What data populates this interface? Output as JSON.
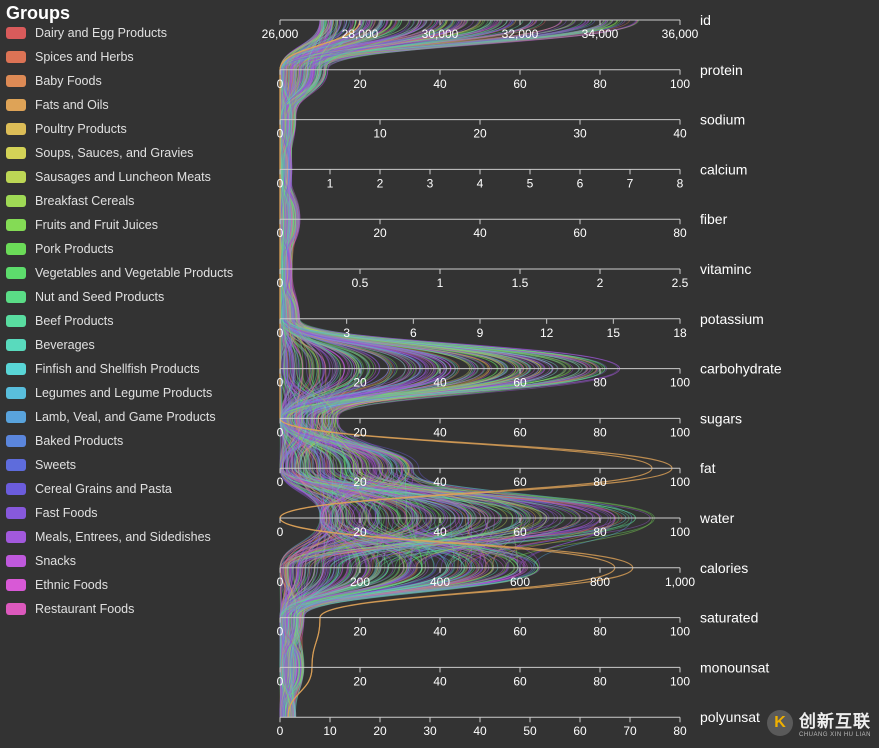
{
  "chart_data": {
    "type": "parallel_coordinates",
    "legend_title": "Groups",
    "legend_position": "left",
    "groups": [
      {
        "name": "Dairy and Egg Products",
        "color": "#d95b5b"
      },
      {
        "name": "Spices and Herbs",
        "color": "#dc7355"
      },
      {
        "name": "Baby Foods",
        "color": "#dd8a55"
      },
      {
        "name": "Fats and Oils",
        "color": "#dea357"
      },
      {
        "name": "Poultry Products",
        "color": "#dcbd57"
      },
      {
        "name": "Soups, Sauces, and Gravies",
        "color": "#d4d357"
      },
      {
        "name": "Sausages and Luncheon Meats",
        "color": "#bcd655"
      },
      {
        "name": "Breakfast Cereals",
        "color": "#9fd955"
      },
      {
        "name": "Fruits and Fruit Juices",
        "color": "#84db55"
      },
      {
        "name": "Pork Products",
        "color": "#6bdb58"
      },
      {
        "name": "Vegetables and Vegetable Products",
        "color": "#5ddc6c"
      },
      {
        "name": "Nut and Seed Products",
        "color": "#5adc86"
      },
      {
        "name": "Beef Products",
        "color": "#59dca0"
      },
      {
        "name": "Beverages",
        "color": "#59dabd"
      },
      {
        "name": "Finfish and Shellfish Products",
        "color": "#59d5d6"
      },
      {
        "name": "Legumes and Legume Products",
        "color": "#59bedc"
      },
      {
        "name": "Lamb, Veal, and Game Products",
        "color": "#59a3dc"
      },
      {
        "name": "Baked Products",
        "color": "#5b86dc"
      },
      {
        "name": "Sweets",
        "color": "#5e6cdc"
      },
      {
        "name": "Cereal Grains and Pasta",
        "color": "#6b5cdc"
      },
      {
        "name": "Fast Foods",
        "color": "#8759dc"
      },
      {
        "name": "Meals, Entrees, and Sidedishes",
        "color": "#a259dc"
      },
      {
        "name": "Snacks",
        "color": "#bf59dc"
      },
      {
        "name": "Ethnic Foods",
        "color": "#d859d6"
      },
      {
        "name": "Restaurant Foods",
        "color": "#dc59bd"
      }
    ],
    "axes": [
      {
        "name": "id",
        "range": [
          26000,
          36000
        ],
        "ticks": [
          "26,000",
          "28,000",
          "30,000",
          "32,000",
          "34,000",
          "36,000"
        ]
      },
      {
        "name": "protein",
        "range": [
          0,
          100
        ],
        "ticks": [
          "0",
          "20",
          "40",
          "60",
          "80",
          "100"
        ]
      },
      {
        "name": "sodium",
        "range": [
          0,
          40
        ],
        "ticks": [
          "0",
          "10",
          "20",
          "30",
          "40"
        ]
      },
      {
        "name": "calcium",
        "range": [
          0,
          8
        ],
        "ticks": [
          "0",
          "1",
          "2",
          "3",
          "4",
          "5",
          "6",
          "7",
          "8"
        ]
      },
      {
        "name": "fiber",
        "range": [
          0,
          80
        ],
        "ticks": [
          "0",
          "20",
          "40",
          "60",
          "80"
        ]
      },
      {
        "name": "vitaminc",
        "range": [
          0,
          2.5
        ],
        "ticks": [
          "0",
          "0.5",
          "1",
          "1.5",
          "2",
          "2.5"
        ]
      },
      {
        "name": "potassium",
        "range": [
          0,
          18
        ],
        "ticks": [
          "0",
          "3",
          "6",
          "9",
          "12",
          "15",
          "18"
        ]
      },
      {
        "name": "carbohydrate",
        "range": [
          0,
          100
        ],
        "ticks": [
          "0",
          "20",
          "40",
          "60",
          "80",
          "100"
        ]
      },
      {
        "name": "sugars",
        "range": [
          0,
          100
        ],
        "ticks": [
          "0",
          "20",
          "40",
          "60",
          "80",
          "100"
        ]
      },
      {
        "name": "fat",
        "range": [
          0,
          100
        ],
        "ticks": [
          "0",
          "20",
          "40",
          "60",
          "80",
          "100"
        ]
      },
      {
        "name": "water",
        "range": [
          0,
          100
        ],
        "ticks": [
          "0",
          "20",
          "40",
          "60",
          "80",
          "100"
        ]
      },
      {
        "name": "calories",
        "range": [
          0,
          1000
        ],
        "ticks": [
          "0",
          "200",
          "400",
          "600",
          "800",
          "1,000"
        ]
      },
      {
        "name": "saturated",
        "range": [
          0,
          100
        ],
        "ticks": [
          "0",
          "20",
          "40",
          "60",
          "80",
          "100"
        ]
      },
      {
        "name": "monounsat",
        "range": [
          0,
          100
        ],
        "ticks": [
          "0",
          "20",
          "40",
          "60",
          "80",
          "100"
        ]
      },
      {
        "name": "polyunsat",
        "range": [
          0,
          80
        ],
        "ticks": [
          "0",
          "10",
          "20",
          "30",
          "40",
          "50",
          "60",
          "70",
          "80"
        ]
      }
    ]
  },
  "watermark": {
    "mark": "K",
    "text_cn": "创新互联",
    "text_en": "CHUANG XIN HU LIAN"
  }
}
